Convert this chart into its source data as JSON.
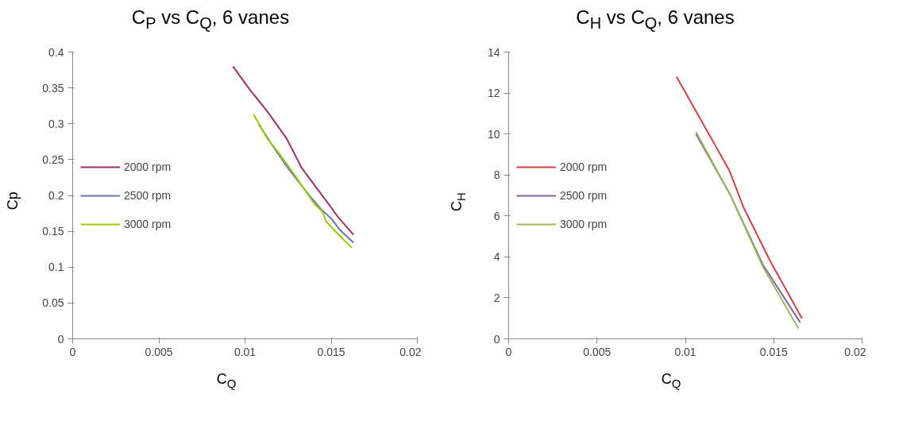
{
  "chart_data": [
    {
      "type": "line",
      "title": "C$_{P}$ vs C$_{Q}$, 6 vanes",
      "xlabel": "C$_{Q}$",
      "ylabel": "Cp",
      "xlim": [
        0,
        0.02
      ],
      "xticks": [
        0,
        0.005,
        0.01,
        0.015,
        0.02
      ],
      "ylim": [
        0,
        0.4
      ],
      "yticks": [
        0,
        0.05,
        0.1,
        0.15,
        0.2,
        0.25,
        0.3,
        0.35,
        0.4
      ],
      "grid": false,
      "legend": "left",
      "series": [
        {
          "name": "2000 rpm",
          "color": "#993366",
          "x": [
            0.0093,
            0.0103,
            0.0107,
            0.0113,
            0.0124,
            0.0133,
            0.0137,
            0.0147,
            0.0154,
            0.0163
          ],
          "values": [
            0.38,
            0.347,
            0.335,
            0.317,
            0.28,
            0.238,
            0.225,
            0.193,
            0.17,
            0.145
          ]
        },
        {
          "name": "2500 rpm",
          "color": "#7070b0",
          "x": [
            0.0108,
            0.0117,
            0.0125,
            0.0137,
            0.0144,
            0.015,
            0.0155,
            0.0163
          ],
          "values": [
            0.299,
            0.266,
            0.238,
            0.201,
            0.181,
            0.168,
            0.152,
            0.134
          ]
        },
        {
          "name": "3000 rpm",
          "color": "#99cc00",
          "x": [
            0.0105,
            0.0113,
            0.012,
            0.0129,
            0.014,
            0.0145,
            0.0147,
            0.0154,
            0.0162
          ],
          "values": [
            0.313,
            0.279,
            0.258,
            0.228,
            0.189,
            0.177,
            0.164,
            0.146,
            0.127
          ]
        }
      ]
    },
    {
      "type": "line",
      "title": "C$_{H}$ vs C$_{Q}$, 6 vanes",
      "xlabel": "C$_{Q}$",
      "ylabel": "C$_{H}$",
      "xlim": [
        0,
        0.02
      ],
      "xticks": [
        0,
        0.005,
        0.01,
        0.015,
        0.02
      ],
      "ylim": [
        0,
        14
      ],
      "yticks": [
        0,
        2,
        4,
        6,
        8,
        10,
        12,
        14
      ],
      "grid": false,
      "legend": "left",
      "series": [
        {
          "name": "2000 rpm",
          "color": "#cc4444",
          "x": [
            0.0095,
            0.011,
            0.0125,
            0.0133,
            0.0148,
            0.0166
          ],
          "values": [
            12.8,
            10.5,
            8.2,
            6.4,
            3.8,
            1.0
          ]
        },
        {
          "name": "2500 rpm",
          "color": "#8064a2",
          "x": [
            0.0106,
            0.0125,
            0.0144,
            0.0165
          ],
          "values": [
            10.0,
            7.1,
            3.6,
            0.8
          ]
        },
        {
          "name": "3000 rpm",
          "color": "#9bbb59",
          "x": [
            0.0106,
            0.0125,
            0.0144,
            0.0164
          ],
          "values": [
            10.1,
            7.1,
            3.5,
            0.5
          ]
        }
      ]
    }
  ]
}
